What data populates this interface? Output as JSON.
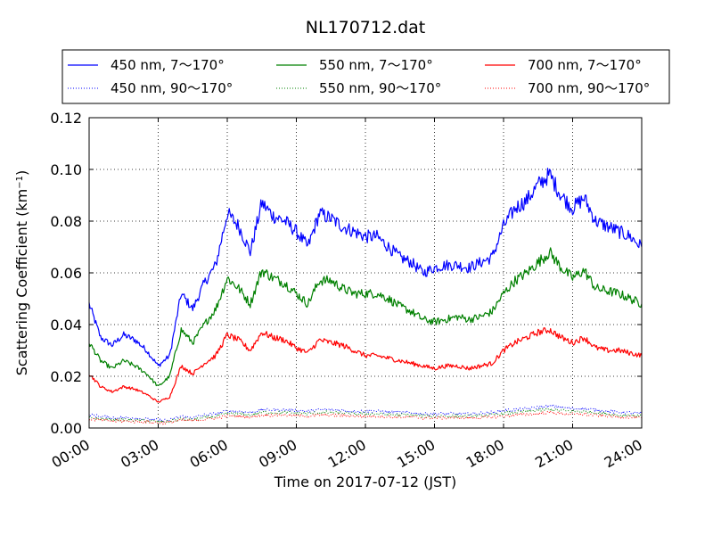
{
  "chart_data": {
    "type": "line",
    "title": "NL170712.dat",
    "xlabel": "Time on 2017-07-12 (JST)",
    "ylabel_main": "Scattering Coefficient (km",
    "ylabel_sup": "−1",
    "ylabel_close": ")",
    "xlim": [
      0,
      24
    ],
    "ylim": [
      0,
      0.12
    ],
    "grid": true,
    "legend_position": "top, above plot, 3 columns",
    "x_ticks": [
      0,
      3,
      6,
      9,
      12,
      15,
      18,
      21,
      24
    ],
    "x_tick_labels": [
      "00:00",
      "03:00",
      "06:00",
      "09:00",
      "12:00",
      "15:00",
      "18:00",
      "21:00",
      "24:00"
    ],
    "y_ticks": [
      0,
      0.02,
      0.04,
      0.06,
      0.08,
      0.1,
      0.12
    ],
    "y_tick_labels": [
      "0.00",
      "0.02",
      "0.04",
      "0.06",
      "0.08",
      "0.10",
      "0.12"
    ],
    "x": [
      0,
      0.5,
      1,
      1.5,
      2,
      2.5,
      3,
      3.5,
      4,
      4.5,
      5,
      5.5,
      6,
      6.5,
      7,
      7.5,
      8,
      8.5,
      9,
      9.5,
      10,
      10.5,
      11,
      11.5,
      12,
      12.5,
      13,
      13.5,
      14,
      14.5,
      15,
      15.5,
      16,
      16.5,
      17,
      17.5,
      18,
      18.5,
      19,
      19.5,
      20,
      20.5,
      21,
      21.5,
      22,
      22.5,
      23,
      23.5,
      24
    ],
    "series": [
      {
        "name": "450 nm, 7～170°",
        "color": "#0000ff",
        "style": "solid",
        "values": [
          0.048,
          0.035,
          0.032,
          0.036,
          0.034,
          0.03,
          0.024,
          0.028,
          0.052,
          0.046,
          0.056,
          0.063,
          0.083,
          0.078,
          0.068,
          0.087,
          0.082,
          0.08,
          0.076,
          0.07,
          0.083,
          0.081,
          0.078,
          0.076,
          0.074,
          0.074,
          0.07,
          0.066,
          0.064,
          0.06,
          0.062,
          0.063,
          0.063,
          0.062,
          0.064,
          0.066,
          0.078,
          0.085,
          0.088,
          0.094,
          0.098,
          0.09,
          0.085,
          0.089,
          0.08,
          0.078,
          0.076,
          0.074,
          0.07
        ]
      },
      {
        "name": "550 nm, 7～170°",
        "color": "#008000",
        "style": "solid",
        "values": [
          0.033,
          0.026,
          0.023,
          0.026,
          0.024,
          0.021,
          0.016,
          0.02,
          0.038,
          0.033,
          0.04,
          0.046,
          0.058,
          0.054,
          0.048,
          0.061,
          0.058,
          0.056,
          0.052,
          0.048,
          0.057,
          0.057,
          0.054,
          0.052,
          0.052,
          0.052,
          0.05,
          0.047,
          0.045,
          0.042,
          0.041,
          0.042,
          0.043,
          0.042,
          0.043,
          0.045,
          0.052,
          0.057,
          0.06,
          0.064,
          0.068,
          0.062,
          0.058,
          0.061,
          0.054,
          0.053,
          0.052,
          0.05,
          0.048
        ]
      },
      {
        "name": "700 nm, 7～170°",
        "color": "#ff0000",
        "style": "solid",
        "values": [
          0.021,
          0.016,
          0.014,
          0.016,
          0.015,
          0.013,
          0.01,
          0.012,
          0.024,
          0.021,
          0.025,
          0.028,
          0.036,
          0.034,
          0.03,
          0.037,
          0.035,
          0.034,
          0.031,
          0.029,
          0.034,
          0.033,
          0.032,
          0.03,
          0.028,
          0.028,
          0.027,
          0.026,
          0.025,
          0.024,
          0.023,
          0.024,
          0.024,
          0.023,
          0.024,
          0.025,
          0.03,
          0.033,
          0.035,
          0.037,
          0.038,
          0.035,
          0.033,
          0.035,
          0.031,
          0.03,
          0.03,
          0.029,
          0.028
        ]
      },
      {
        "name": "450 nm, 90～170°",
        "color": "#0000ff",
        "style": "dotted",
        "values": [
          0.005,
          0.0045,
          0.004,
          0.004,
          0.0038,
          0.0035,
          0.003,
          0.003,
          0.0045,
          0.004,
          0.005,
          0.0055,
          0.0065,
          0.0065,
          0.006,
          0.007,
          0.007,
          0.007,
          0.0068,
          0.0065,
          0.007,
          0.007,
          0.0068,
          0.0065,
          0.0065,
          0.0065,
          0.0062,
          0.006,
          0.006,
          0.0055,
          0.0055,
          0.0055,
          0.0055,
          0.0055,
          0.0058,
          0.006,
          0.0068,
          0.007,
          0.0075,
          0.008,
          0.0085,
          0.008,
          0.0075,
          0.0075,
          0.007,
          0.0065,
          0.006,
          0.006,
          0.0055
        ]
      },
      {
        "name": "550 nm, 90～170°",
        "color": "#008000",
        "style": "dotted",
        "values": [
          0.004,
          0.0035,
          0.0032,
          0.0032,
          0.003,
          0.0028,
          0.0024,
          0.0025,
          0.0035,
          0.0032,
          0.004,
          0.0045,
          0.0055,
          0.0055,
          0.005,
          0.006,
          0.006,
          0.006,
          0.0058,
          0.0055,
          0.006,
          0.006,
          0.0058,
          0.0055,
          0.0055,
          0.0055,
          0.0052,
          0.005,
          0.005,
          0.0046,
          0.0046,
          0.0046,
          0.0046,
          0.0046,
          0.0048,
          0.005,
          0.0056,
          0.006,
          0.0064,
          0.0068,
          0.0072,
          0.0068,
          0.0064,
          0.0064,
          0.006,
          0.0055,
          0.005,
          0.005,
          0.0046
        ]
      },
      {
        "name": "700 nm, 90～170°",
        "color": "#ff0000",
        "style": "dotted",
        "values": [
          0.0035,
          0.003,
          0.0027,
          0.0027,
          0.0025,
          0.0023,
          0.002,
          0.0021,
          0.003,
          0.0028,
          0.0034,
          0.0038,
          0.0046,
          0.0046,
          0.0042,
          0.005,
          0.005,
          0.005,
          0.0048,
          0.0046,
          0.005,
          0.005,
          0.0048,
          0.0046,
          0.0045,
          0.0045,
          0.0043,
          0.0042,
          0.0042,
          0.0039,
          0.0039,
          0.0039,
          0.0039,
          0.0039,
          0.004,
          0.0042,
          0.0046,
          0.005,
          0.0053,
          0.0056,
          0.006,
          0.0056,
          0.0053,
          0.0053,
          0.005,
          0.0046,
          0.0042,
          0.0042,
          0.0039
        ]
      }
    ],
    "legend": {
      "columns": [
        [
          "450 nm, 7～170°",
          "450 nm, 90～170°"
        ],
        [
          "550 nm, 7～170°",
          "550 nm, 90～170°"
        ],
        [
          "700 nm, 7～170°",
          "700 nm, 90～170°"
        ]
      ]
    }
  }
}
